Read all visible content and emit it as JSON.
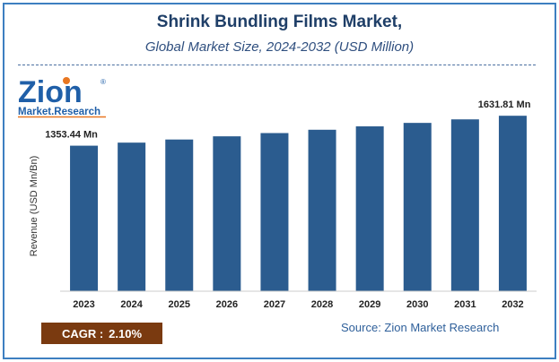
{
  "header": {
    "title": "Shrink Bundling Films Market,",
    "subtitle": "Global Market Size, 2024-2032 (USD Million)"
  },
  "logo": {
    "name_text": "Zion",
    "tag_text": "Market.Research",
    "reg_mark": "®"
  },
  "footer": {
    "cagr_label": "CAGR :",
    "cagr_value": "2.10%",
    "source": "Source: Zion Market Research"
  },
  "colors": {
    "bar": "#2b5c8f",
    "border": "#3d7fc1",
    "cagr_bg": "#7a3a10",
    "logo_blue": "#1f5fa8",
    "logo_orange": "#e87722"
  },
  "chart_data": {
    "type": "bar",
    "ylabel": "Revenue (USD Mn/Bn)",
    "categories": [
      "2023",
      "2024",
      "2025",
      "2026",
      "2027",
      "2028",
      "2029",
      "2030",
      "2031",
      "2032"
    ],
    "values": [
      1353.44,
      1381.86,
      1410.88,
      1440.51,
      1470.76,
      1501.65,
      1533.18,
      1565.38,
      1598.25,
      1631.81
    ],
    "data_labels": [
      {
        "index": 0,
        "text": "1353.44 Mn"
      },
      {
        "index": 9,
        "text": "1631.81 Mn"
      }
    ],
    "ylim": [
      0,
      1750
    ],
    "grid": false,
    "legend": "none"
  }
}
